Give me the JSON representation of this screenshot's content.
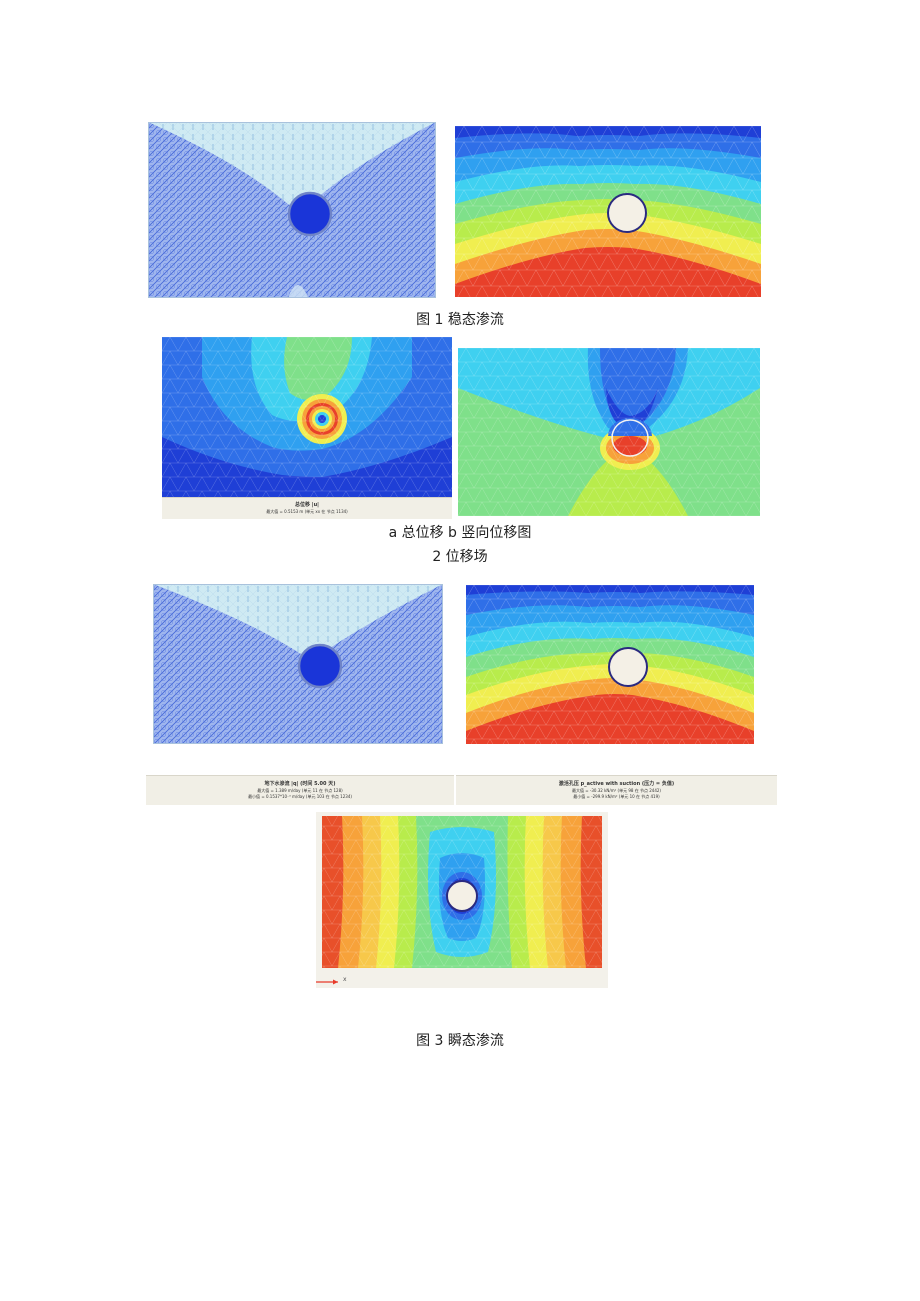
{
  "figure1": {
    "caption": "图 1 稳态渗流",
    "left_panel": {
      "icon": "flow-vector-plot"
    },
    "right_panel": {
      "icon": "pore-pressure-contour"
    }
  },
  "figure2": {
    "caption_line1": "a 总位移 b 竖向位移图",
    "caption_line2": "2 位移场",
    "left_panel": {
      "legend_title": "总位移 |u|",
      "legend_line": "最大值 = 0.5153 m (单元 xx 在 节点 1134)"
    },
    "right_panel": {
      "icon": "vertical-displacement-contour"
    }
  },
  "figure3": {
    "caption": "图 3 瞬态渗流",
    "legend_left": {
      "title": "地下水渗流 |q| (时间 5.00 天)",
      "max": "最大值 = 1.389 m/day (单元 11 在 节点 128)",
      "min": "最小值 = 0.1537*10⁻³ m/day (单元 103 在 节点 1234)"
    },
    "legend_right": {
      "title": "激活孔压 p_active with suction (压力 = 负值)",
      "max": "最大值 = -30.32 kN/m² (单元 98 在 节点 2442)",
      "min": "最小值 = -299.9 kN/m² (单元 10 在 节点 419)"
    },
    "axis_label": "x"
  },
  "colors": {
    "dark_blue": "#1f3fd6",
    "blue": "#2f6fe8",
    "cyan": "#3fd0f0",
    "green": "#7fe08a",
    "yellow": "#f0ee50",
    "orange": "#f7a23a",
    "red": "#e8402a"
  }
}
